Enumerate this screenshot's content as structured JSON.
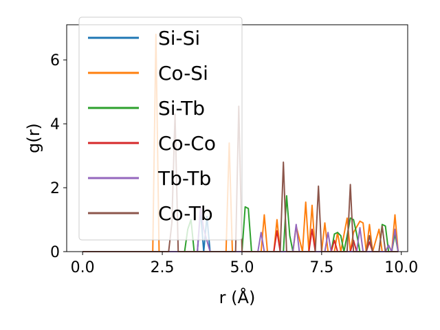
{
  "chart_data": {
    "type": "line",
    "title": "",
    "xlabel": "r (Å)",
    "ylabel": "g(r)",
    "xlim": [
      -0.5,
      10.2
    ],
    "ylim": [
      0,
      7.1
    ],
    "xticks": [
      0.0,
      2.5,
      5.0,
      7.5,
      10.0
    ],
    "xtick_labels": [
      "0.0",
      "2.5",
      "5.0",
      "7.5",
      "10.0"
    ],
    "yticks": [
      0,
      2,
      4,
      6
    ],
    "ytick_labels": [
      "0",
      "2",
      "4",
      "6"
    ],
    "grid": false,
    "legend_position": "top-left",
    "series": [
      {
        "name": "Si-Si",
        "color": "#1f77b4",
        "x": [
          0,
          3.6,
          3.7,
          3.8,
          3.9,
          4.0,
          4.1,
          9.9
        ],
        "y": [
          0,
          0,
          1.3,
          0,
          1.1,
          0,
          0,
          0
        ]
      },
      {
        "name": "Co-Si",
        "color": "#ff7f0e",
        "x": [
          0,
          2.2,
          2.3,
          2.4,
          4.5,
          4.6,
          4.7,
          5.6,
          5.7,
          5.8,
          6.0,
          6.1,
          6.2,
          6.4,
          6.6,
          6.7,
          6.9,
          7.0,
          7.1,
          7.2,
          7.3,
          7.5,
          7.6,
          7.7,
          7.9,
          8.0,
          8.1,
          8.3,
          8.4,
          8.5,
          8.7,
          8.8,
          8.9,
          9.0,
          9.1,
          9.3,
          9.4,
          9.6,
          9.7,
          9.8,
          9.9
        ],
        "y": [
          0,
          0,
          6.8,
          0,
          0,
          3.4,
          0,
          0,
          1.15,
          0,
          0,
          1.0,
          0,
          0,
          0,
          0.8,
          0,
          1.55,
          0,
          1.45,
          0,
          0,
          0.9,
          0,
          0,
          0.6,
          0,
          1.05,
          0,
          0.6,
          0.95,
          0.9,
          0,
          0.85,
          0,
          0.7,
          0,
          0,
          0,
          1.15,
          0
        ]
      },
      {
        "name": "Si-Tb",
        "color": "#2ca02c",
        "x": [
          0,
          3.2,
          3.3,
          3.4,
          3.5,
          5.0,
          5.1,
          5.2,
          5.3,
          6.3,
          6.4,
          6.5,
          6.6,
          7.8,
          7.9,
          8.0,
          8.1,
          8.2,
          8.3,
          8.4,
          8.5,
          8.6,
          8.7,
          9.3,
          9.4,
          9.5,
          9.6,
          9.7,
          9.8,
          9.9
        ],
        "y": [
          0,
          0,
          0.7,
          1.0,
          0,
          0,
          1.4,
          1.35,
          0,
          0,
          1.75,
          0.5,
          0,
          0,
          0.55,
          0.6,
          0.5,
          0,
          0.5,
          1.05,
          1.0,
          0.55,
          0,
          0,
          0.85,
          0.8,
          0,
          0,
          0.55,
          0
        ]
      },
      {
        "name": "Co-Co",
        "color": "#d62728",
        "x": [
          0,
          6.0,
          6.1,
          6.2,
          7.1,
          7.2,
          7.3,
          7.8,
          7.9,
          8.0,
          8.4,
          8.5,
          8.6,
          8.9,
          9.0,
          9.1,
          9.9
        ],
        "y": [
          0,
          0,
          0.65,
          0,
          0,
          0.7,
          0,
          0,
          0.35,
          0,
          0,
          0.35,
          0,
          0,
          0.3,
          0,
          0
        ]
      },
      {
        "name": "Tb-Tb",
        "color": "#9467bd",
        "x": [
          0,
          3.6,
          3.7,
          3.8,
          4.0,
          5.5,
          5.6,
          5.7,
          6.6,
          6.7,
          6.8,
          7.6,
          7.7,
          7.8,
          8.6,
          8.7,
          8.8,
          9.5,
          9.6,
          9.7,
          9.8,
          9.9
        ],
        "y": [
          0,
          0,
          1.4,
          0.7,
          0,
          0,
          0.6,
          0,
          0,
          0.85,
          0,
          0,
          0.6,
          0,
          0,
          0.75,
          0,
          0,
          0.2,
          0,
          0.7,
          0
        ]
      },
      {
        "name": "Co-Tb",
        "color": "#8c564b",
        "x": [
          0,
          2.7,
          2.8,
          2.9,
          3.0,
          4.8,
          4.9,
          5.0,
          6.2,
          6.3,
          6.4,
          7.3,
          7.4,
          7.5,
          8.3,
          8.4,
          8.5,
          8.9,
          9.0,
          9.1,
          9.3,
          9.4,
          9.5,
          9.8,
          9.9
        ],
        "y": [
          0,
          0,
          0.9,
          4.3,
          0,
          0,
          4.55,
          0,
          0,
          2.8,
          0,
          0,
          2.05,
          0,
          0,
          2.1,
          0,
          0,
          0.5,
          0,
          0,
          0.8,
          0,
          0,
          0
        ]
      }
    ]
  }
}
